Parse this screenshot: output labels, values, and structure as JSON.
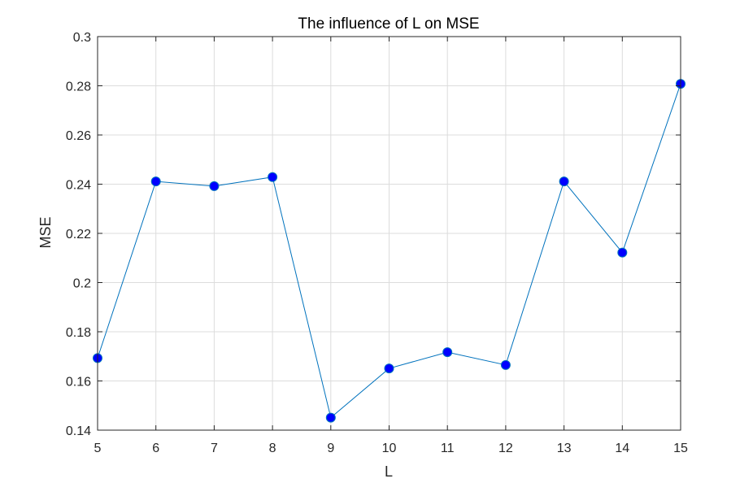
{
  "chart_data": {
    "type": "line",
    "title": "The influence of L on MSE",
    "xlabel": "L",
    "ylabel": "MSE",
    "x": [
      5,
      6,
      7,
      8,
      9,
      10,
      11,
      12,
      13,
      14,
      15
    ],
    "series": [
      {
        "values": [
          0.1693,
          0.2411,
          0.2392,
          0.2429,
          0.1451,
          0.1651,
          0.1717,
          0.1665,
          0.2411,
          0.2122,
          0.2808
        ]
      }
    ],
    "xlim": [
      5,
      15
    ],
    "ylim": [
      0.14,
      0.3
    ],
    "xticks": [
      5,
      6,
      7,
      8,
      9,
      10,
      11,
      12,
      13,
      14,
      15
    ],
    "yticks": [
      0.14,
      0.16,
      0.18,
      0.2,
      0.22,
      0.24,
      0.26,
      0.28,
      0.3
    ],
    "ytick_labels": [
      "0.14",
      "0.16",
      "0.18",
      "0.2",
      "0.22",
      "0.24",
      "0.26",
      "0.28",
      "0.3"
    ],
    "grid": true,
    "line_color": "#0072BD",
    "marker_color": "#0000FF"
  }
}
